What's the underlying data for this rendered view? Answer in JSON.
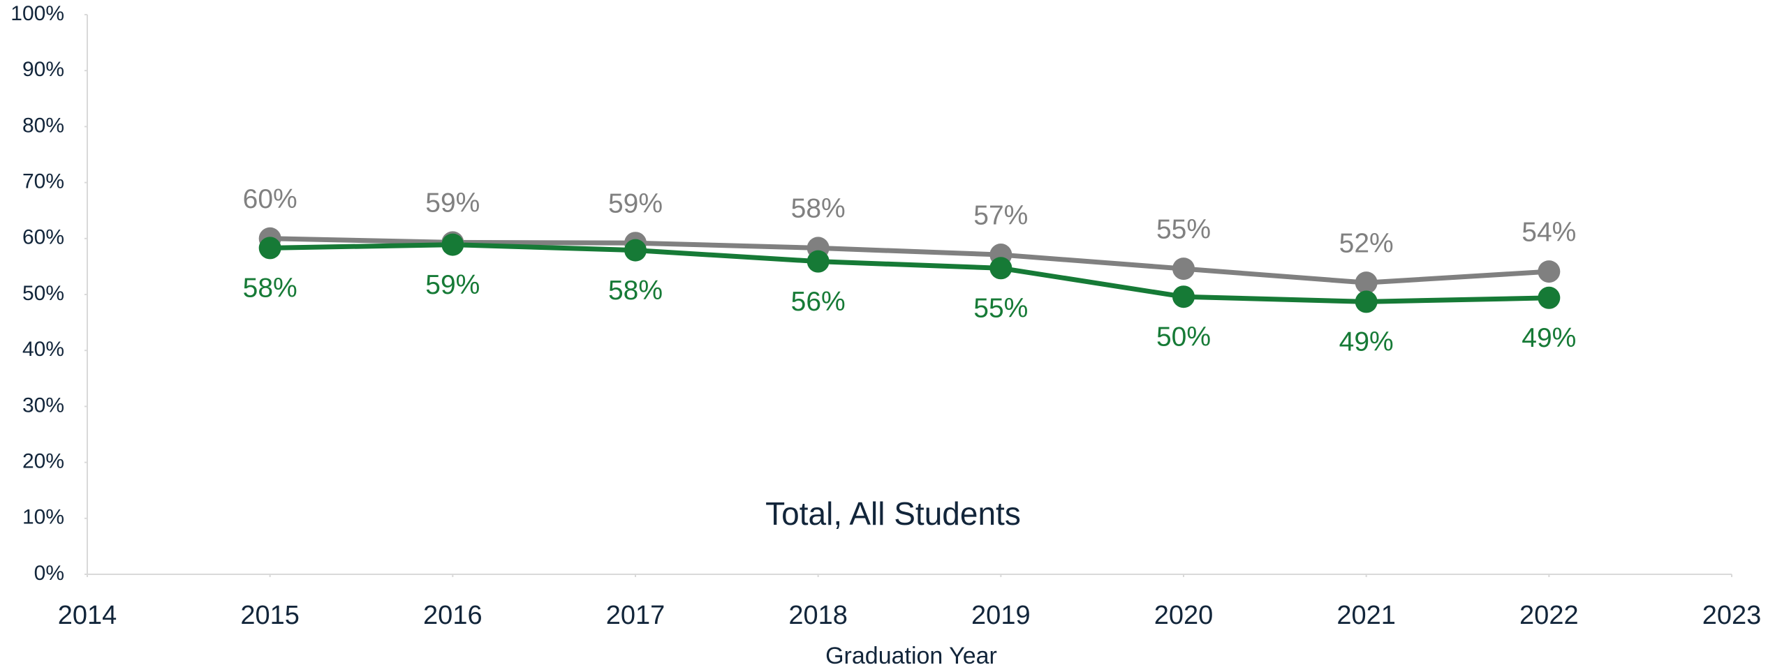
{
  "chart_data": {
    "type": "line",
    "annotation": "Total, All Students",
    "x_label": "Graduation Year",
    "x": [
      2015,
      2016,
      2017,
      2018,
      2019,
      2020,
      2021,
      2022
    ],
    "series": [
      {
        "color": "#808080",
        "values": [
          60,
          59.3,
          59.2,
          58.3,
          57.1,
          54.6,
          52.1,
          54.1
        ],
        "value_labels": [
          "60%",
          "59%",
          "59%",
          "58%",
          "57%",
          "55%",
          "52%",
          "54%"
        ]
      },
      {
        "color": "#167a36",
        "values": [
          58.3,
          58.9,
          57.9,
          55.9,
          54.7,
          49.6,
          48.7,
          49.4
        ],
        "value_labels": [
          "58%",
          "59%",
          "58%",
          "56%",
          "55%",
          "50%",
          "49%",
          "49%"
        ]
      }
    ],
    "xlim": [
      2014,
      2023
    ],
    "xticks": [
      2014,
      2015,
      2016,
      2017,
      2018,
      2019,
      2020,
      2021,
      2022,
      2023
    ],
    "ylim": [
      0,
      100
    ],
    "yticks": [
      {
        "value": 0,
        "label": "0%"
      },
      {
        "value": 10,
        "label": "10%"
      },
      {
        "value": 20,
        "label": "20%"
      },
      {
        "value": 30,
        "label": "30%"
      },
      {
        "value": 40,
        "label": "40%"
      },
      {
        "value": 50,
        "label": "50%"
      },
      {
        "value": 60,
        "label": "60%"
      },
      {
        "value": 70,
        "label": "70%"
      },
      {
        "value": 80,
        "label": "80%"
      },
      {
        "value": 90,
        "label": "90%"
      },
      {
        "value": 100,
        "label": "100%"
      }
    ]
  }
}
